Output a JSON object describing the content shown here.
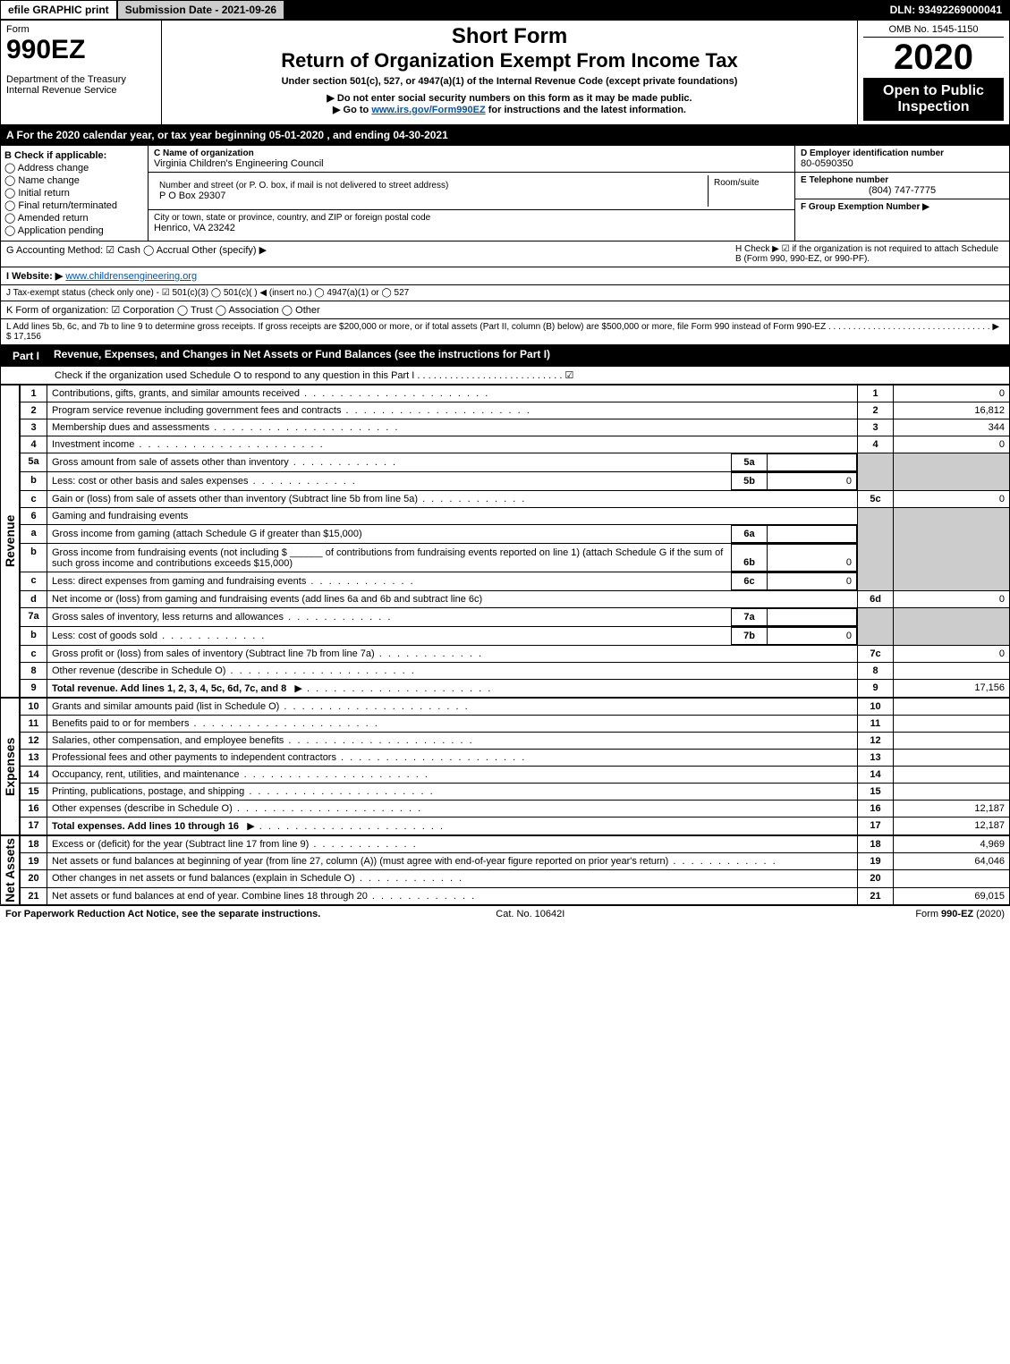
{
  "top": {
    "efile": "efile GRAPHIC print",
    "submission": "Submission Date - 2021-09-26",
    "dln": "DLN: 93492269000041"
  },
  "header": {
    "form": "Form",
    "formNum": "990EZ",
    "dept": "Department of the Treasury",
    "irs": "Internal Revenue Service",
    "shortForm": "Short Form",
    "title": "Return of Organization Exempt From Income Tax",
    "subtitle": "Under section 501(c), 527, or 4947(a)(1) of the Internal Revenue Code (except private foundations)",
    "warn1": "▶ Do not enter social security numbers on this form as it may be made public.",
    "warn2": "▶ Go to ",
    "warnLink": "www.irs.gov/Form990EZ",
    "warn2b": " for instructions and the latest information.",
    "omb": "OMB No. 1545-1150",
    "year": "2020",
    "open": "Open to Public Inspection"
  },
  "a": "A For the 2020 calendar year, or tax year beginning 05-01-2020 , and ending 04-30-2021",
  "b": {
    "title": "B Check if applicable:",
    "items": [
      "Address change",
      "Name change",
      "Initial return",
      "Final return/terminated",
      "Amended return",
      "Application pending"
    ]
  },
  "c": {
    "label": "C Name of organization",
    "name": "Virginia Children's Engineering Council",
    "addrLabel": "Number and street (or P. O. box, if mail is not delivered to street address)",
    "addr": "P O Box 29307",
    "roomLabel": "Room/suite",
    "cityLabel": "City or town, state or province, country, and ZIP or foreign postal code",
    "city": "Henrico, VA  23242"
  },
  "d": {
    "label": "D Employer identification number",
    "ein": "80-0590350",
    "eLabel": "E Telephone number",
    "phone": "(804) 747-7775",
    "fLabel": "F Group Exemption Number  ▶"
  },
  "g": "G Accounting Method:  ☑ Cash  ◯ Accrual   Other (specify) ▶",
  "h": "H  Check ▶  ☑  if the organization is not required to attach Schedule B (Form 990, 990-EZ, or 990-PF).",
  "i": {
    "label": "I Website: ▶",
    "val": "www.childrensengineering.org"
  },
  "j": "J Tax-exempt status (check only one) -  ☑ 501(c)(3)  ◯ 501(c)(  ) ◀ (insert no.)  ◯ 4947(a)(1) or  ◯ 527",
  "k": "K Form of organization:  ☑ Corporation   ◯ Trust   ◯ Association   ◯ Other",
  "l": "L Add lines 5b, 6c, and 7b to line 9 to determine gross receipts. If gross receipts are $200,000 or more, or if total assets (Part II, column (B) below) are $500,000 or more, file Form 990 instead of Form 990-EZ  . . . . . . . . . . . . . . . . . . . . . . . . . . . . . . . . .  ▶ $ 17,156",
  "part1": {
    "label": "Part I",
    "title": "Revenue, Expenses, and Changes in Net Assets or Fund Balances (see the instructions for Part I)",
    "check": "Check if the organization used Schedule O to respond to any question in this Part I . . . . . . . . . . . . . . . . . . . . . . . . . . .  ☑"
  },
  "revenueLabel": "Revenue",
  "expensesLabel": "Expenses",
  "netAssetsLabel": "Net Assets",
  "lines": {
    "1": {
      "t": "Contributions, gifts, grants, and similar amounts received",
      "n": "1",
      "v": "0"
    },
    "2": {
      "t": "Program service revenue including government fees and contracts",
      "n": "2",
      "v": "16,812"
    },
    "3": {
      "t": "Membership dues and assessments",
      "n": "3",
      "v": "344"
    },
    "4": {
      "t": "Investment income",
      "n": "4",
      "v": "0"
    },
    "5a": {
      "t": "Gross amount from sale of assets other than inventory",
      "sn": "5a",
      "sv": ""
    },
    "5b": {
      "t": "Less: cost or other basis and sales expenses",
      "sn": "5b",
      "sv": "0"
    },
    "5c": {
      "t": "Gain or (loss) from sale of assets other than inventory (Subtract line 5b from line 5a)",
      "n": "5c",
      "v": "0"
    },
    "6": {
      "t": "Gaming and fundraising events"
    },
    "6a": {
      "t": "Gross income from gaming (attach Schedule G if greater than $15,000)",
      "sn": "6a",
      "sv": ""
    },
    "6b": {
      "t": "Gross income from fundraising events (not including $",
      "t2": "of contributions from fundraising events reported on line 1) (attach Schedule G if the sum of such gross income and contributions exceeds $15,000)",
      "sn": "6b",
      "sv": "0"
    },
    "6c": {
      "t": "Less: direct expenses from gaming and fundraising events",
      "sn": "6c",
      "sv": "0"
    },
    "6d": {
      "t": "Net income or (loss) from gaming and fundraising events (add lines 6a and 6b and subtract line 6c)",
      "n": "6d",
      "v": "0"
    },
    "7a": {
      "t": "Gross sales of inventory, less returns and allowances",
      "sn": "7a",
      "sv": ""
    },
    "7b": {
      "t": "Less: cost of goods sold",
      "sn": "7b",
      "sv": "0"
    },
    "7c": {
      "t": "Gross profit or (loss) from sales of inventory (Subtract line 7b from line 7a)",
      "n": "7c",
      "v": "0"
    },
    "8": {
      "t": "Other revenue (describe in Schedule O)",
      "n": "8",
      "v": ""
    },
    "9": {
      "t": "Total revenue. Add lines 1, 2, 3, 4, 5c, 6d, 7c, and 8",
      "n": "9",
      "v": "17,156"
    },
    "10": {
      "t": "Grants and similar amounts paid (list in Schedule O)",
      "n": "10",
      "v": ""
    },
    "11": {
      "t": "Benefits paid to or for members",
      "n": "11",
      "v": ""
    },
    "12": {
      "t": "Salaries, other compensation, and employee benefits",
      "n": "12",
      "v": ""
    },
    "13": {
      "t": "Professional fees and other payments to independent contractors",
      "n": "13",
      "v": ""
    },
    "14": {
      "t": "Occupancy, rent, utilities, and maintenance",
      "n": "14",
      "v": ""
    },
    "15": {
      "t": "Printing, publications, postage, and shipping",
      "n": "15",
      "v": ""
    },
    "16": {
      "t": "Other expenses (describe in Schedule O)",
      "n": "16",
      "v": "12,187"
    },
    "17": {
      "t": "Total expenses. Add lines 10 through 16",
      "n": "17",
      "v": "12,187"
    },
    "18": {
      "t": "Excess or (deficit) for the year (Subtract line 17 from line 9)",
      "n": "18",
      "v": "4,969"
    },
    "19": {
      "t": "Net assets or fund balances at beginning of year (from line 27, column (A)) (must agree with end-of-year figure reported on prior year's return)",
      "n": "19",
      "v": "64,046"
    },
    "20": {
      "t": "Other changes in net assets or fund balances (explain in Schedule O)",
      "n": "20",
      "v": ""
    },
    "21": {
      "t": "Net assets or fund balances at end of year. Combine lines 18 through 20",
      "n": "21",
      "v": "69,015"
    }
  },
  "footer": {
    "left": "For Paperwork Reduction Act Notice, see the separate instructions.",
    "mid": "Cat. No. 10642I",
    "right": "Form 990-EZ (2020)"
  }
}
